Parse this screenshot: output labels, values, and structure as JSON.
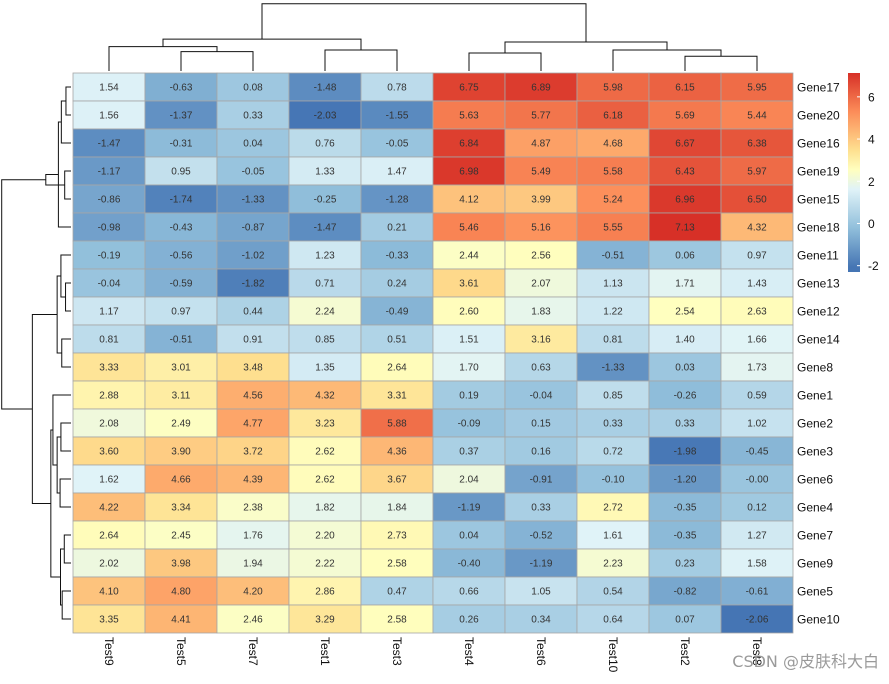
{
  "chart_data": {
    "type": "heatmap",
    "rows": [
      "Gene17",
      "Gene20",
      "Gene16",
      "Gene19",
      "Gene15",
      "Gene18",
      "Gene11",
      "Gene13",
      "Gene12",
      "Gene14",
      "Gene8",
      "Gene1",
      "Gene2",
      "Gene3",
      "Gene6",
      "Gene4",
      "Gene7",
      "Gene9",
      "Gene5",
      "Gene10"
    ],
    "columns": [
      "Test9",
      "Test5",
      "Test7",
      "Test1",
      "Test3",
      "Test4",
      "Test6",
      "Test10",
      "Test2",
      "Test8"
    ],
    "values": [
      [
        "1.54",
        "-0.63",
        "0.08",
        "-1.48",
        "0.78",
        "6.75",
        "6.89",
        "5.98",
        "6.15",
        "5.95"
      ],
      [
        "1.56",
        "-1.37",
        "0.33",
        "-2.03",
        "-1.55",
        "5.63",
        "5.77",
        "6.18",
        "5.69",
        "5.44"
      ],
      [
        "-1.47",
        "-0.31",
        "0.04",
        "0.76",
        "-0.05",
        "6.84",
        "4.87",
        "4.68",
        "6.67",
        "6.38"
      ],
      [
        "-1.17",
        "0.95",
        "-0.05",
        "1.33",
        "1.47",
        "6.98",
        "5.49",
        "5.58",
        "6.43",
        "5.97"
      ],
      [
        "-0.86",
        "-1.74",
        "-1.33",
        "-0.25",
        "-1.28",
        "4.12",
        "3.99",
        "5.24",
        "6.96",
        "6.50"
      ],
      [
        "-0.98",
        "-0.43",
        "-0.87",
        "-1.47",
        "0.21",
        "5.46",
        "5.16",
        "5.55",
        "7.13",
        "4.32"
      ],
      [
        "-0.19",
        "-0.56",
        "-1.02",
        "1.23",
        "-0.33",
        "2.44",
        "2.56",
        "-0.51",
        "0.06",
        "0.97"
      ],
      [
        "-0.04",
        "-0.59",
        "-1.82",
        "0.71",
        "0.24",
        "3.61",
        "2.07",
        "1.13",
        "1.71",
        "1.43"
      ],
      [
        "1.17",
        "0.97",
        "0.44",
        "2.24",
        "-0.49",
        "2.60",
        "1.83",
        "1.22",
        "2.54",
        "2.63"
      ],
      [
        "0.81",
        "-0.51",
        "0.91",
        "0.85",
        "0.51",
        "1.51",
        "3.16",
        "0.81",
        "1.40",
        "1.66"
      ],
      [
        "3.33",
        "3.01",
        "3.48",
        "1.35",
        "2.64",
        "1.70",
        "0.63",
        "-1.33",
        "0.03",
        "1.73"
      ],
      [
        "2.88",
        "3.11",
        "4.56",
        "4.32",
        "3.31",
        "0.19",
        "-0.04",
        "0.85",
        "-0.26",
        "0.59"
      ],
      [
        "2.08",
        "2.49",
        "4.77",
        "3.23",
        "5.88",
        "-0.09",
        "0.15",
        "0.33",
        "0.33",
        "1.02"
      ],
      [
        "3.60",
        "3.90",
        "3.72",
        "2.62",
        "4.36",
        "0.37",
        "0.16",
        "0.72",
        "-1.98",
        "-0.45"
      ],
      [
        "1.62",
        "4.66",
        "4.39",
        "2.62",
        "3.67",
        "2.04",
        "-0.91",
        "-0.10",
        "-1.20",
        "-0.00"
      ],
      [
        "4.22",
        "3.34",
        "2.38",
        "1.82",
        "1.84",
        "-1.19",
        "0.33",
        "2.72",
        "-0.35",
        "0.12"
      ],
      [
        "2.64",
        "2.45",
        "1.76",
        "2.20",
        "2.73",
        "0.04",
        "-0.52",
        "1.61",
        "-0.35",
        "1.27"
      ],
      [
        "2.02",
        "3.98",
        "1.94",
        "2.22",
        "2.58",
        "-0.40",
        "-1.19",
        "2.23",
        "0.23",
        "1.58"
      ],
      [
        "4.10",
        "4.80",
        "4.20",
        "2.86",
        "0.47",
        "0.66",
        "1.05",
        "0.54",
        "-0.82",
        "-0.61"
      ],
      [
        "3.35",
        "4.41",
        "2.46",
        "3.29",
        "2.58",
        "0.26",
        "0.34",
        "0.64",
        "0.07",
        "-2.06"
      ]
    ],
    "color_scale": {
      "min": -2.06,
      "max": 7.13,
      "stops": [
        {
          "value": -2.06,
          "color": "#4575B4"
        },
        {
          "value": -0.22,
          "color": "#91BFDB"
        },
        {
          "value": 1.62,
          "color": "#E0F3F8"
        },
        {
          "value": 2.54,
          "color": "#FFFFBF"
        },
        {
          "value": 3.46,
          "color": "#FEE090"
        },
        {
          "value": 5.29,
          "color": "#FC8D59"
        },
        {
          "value": 7.13,
          "color": "#D73027"
        }
      ]
    },
    "legend": {
      "ticks": [
        "6",
        "4",
        "2",
        "0",
        "-2"
      ],
      "tick_values": [
        6,
        4,
        2,
        0,
        -2
      ],
      "range": [
        -2.3,
        7.13
      ],
      "placement": "right"
    },
    "row_dendrogram": {
      "merges": [
        [
          0,
          1,
          1.2
        ],
        [
          3,
          4,
          1.5
        ],
        [
          2,
          20,
          2.3
        ],
        [
          5,
          22,
          3.0
        ],
        [
          21,
          23,
          6.0
        ],
        [
          7,
          8,
          1.3
        ],
        [
          9,
          10,
          2.2
        ],
        [
          6,
          25,
          2.4
        ],
        [
          26,
          27,
          3.3
        ],
        [
          12,
          13,
          2.4
        ],
        [
          14,
          15,
          2.6
        ],
        [
          29,
          30,
          3.3
        ],
        [
          11,
          31,
          4.3
        ],
        [
          16,
          17,
          1.6
        ],
        [
          18,
          19,
          2.1
        ],
        [
          33,
          34,
          2.5
        ],
        [
          32,
          35,
          4.8
        ],
        [
          28,
          36,
          9.2
        ],
        [
          24,
          37,
          16.5
        ]
      ]
    },
    "col_dendrogram": {
      "merges": [
        [
          1,
          2,
          4.6
        ],
        [
          0,
          10,
          5.8
        ],
        [
          3,
          4,
          5.0
        ],
        [
          11,
          12,
          7.6
        ],
        [
          5,
          6,
          4.3
        ],
        [
          8,
          9,
          3.5
        ],
        [
          7,
          15,
          5.0
        ],
        [
          14,
          16,
          6.9
        ],
        [
          13,
          17,
          16.0
        ]
      ]
    },
    "watermark": "CSDN @皮肤科大白"
  }
}
